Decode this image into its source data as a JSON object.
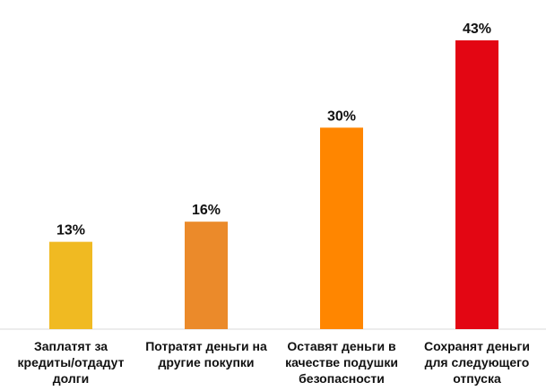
{
  "chart_data": {
    "type": "bar",
    "categories": [
      [
        "Заплатят за",
        "кредиты/отдадут",
        "долги"
      ],
      [
        "Потратят деньги на",
        "другие покупки"
      ],
      [
        "Оставят деньги в",
        "качестве подушки",
        "безопасности"
      ],
      [
        "Сохранят деньги",
        "для следующего",
        "отпуска"
      ]
    ],
    "values": [
      13,
      16,
      30,
      43
    ],
    "value_labels": [
      "13%",
      "16%",
      "30%",
      "43%"
    ],
    "colors": [
      "#F0BA22",
      "#EB8A2A",
      "#FF8600",
      "#E30613"
    ],
    "axis_line_color": "#D9D9D9",
    "ylim": [
      0,
      43
    ],
    "grid": false,
    "legend": "none"
  }
}
